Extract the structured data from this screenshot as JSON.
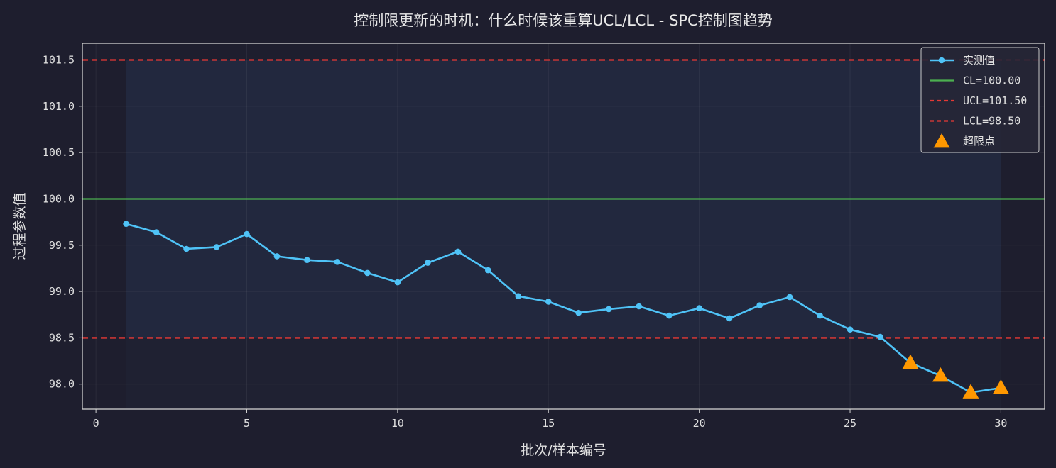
{
  "chart_data": {
    "type": "line",
    "title": "控制限更新的时机：什么时候该重算UCL/LCL - SPC控制图趋势",
    "xlabel": "批次/样本编号",
    "ylabel": "过程参数值",
    "xlim": [
      -0.45,
      31.45
    ],
    "ylim": [
      97.73,
      101.68
    ],
    "xticks": [
      0,
      5,
      10,
      15,
      20,
      25,
      30
    ],
    "yticks": [
      98.0,
      98.5,
      99.0,
      99.5,
      100.0,
      100.5,
      101.0,
      101.5
    ],
    "grid": true,
    "legend_position": "top-right",
    "series": [
      {
        "name": "实测值",
        "x": [
          1,
          2,
          3,
          4,
          5,
          6,
          7,
          8,
          9,
          10,
          11,
          12,
          13,
          14,
          15,
          16,
          17,
          18,
          19,
          20,
          21,
          22,
          23,
          24,
          25,
          26,
          27,
          28,
          29,
          30
        ],
        "values": [
          99.73,
          99.64,
          99.46,
          99.48,
          99.62,
          99.38,
          99.34,
          99.32,
          99.2,
          99.1,
          99.31,
          99.43,
          99.23,
          98.95,
          98.89,
          98.77,
          98.81,
          98.84,
          98.74,
          98.82,
          98.71,
          98.85,
          98.94,
          98.74,
          98.59,
          98.51,
          98.23,
          98.09,
          97.91,
          97.96
        ],
        "color": "#4fc3f7"
      }
    ],
    "reference_lines": [
      {
        "name": "CL=100.00",
        "value": 100.0,
        "color": "#4caf50",
        "style": "solid"
      },
      {
        "name": "UCL=101.50",
        "value": 101.5,
        "color": "#e53935",
        "style": "dashed"
      },
      {
        "name": "LCL=98.50",
        "value": 98.5,
        "color": "#e53935",
        "style": "dashed"
      }
    ],
    "out_of_control": {
      "name": "超限点",
      "x": [
        27,
        28,
        29,
        30
      ],
      "values": [
        98.23,
        98.09,
        97.91,
        97.96
      ],
      "color": "#ff9800",
      "marker": "triangle"
    },
    "band": {
      "from_x": 1,
      "to_x": 30,
      "color": "#3a5a8a"
    }
  }
}
